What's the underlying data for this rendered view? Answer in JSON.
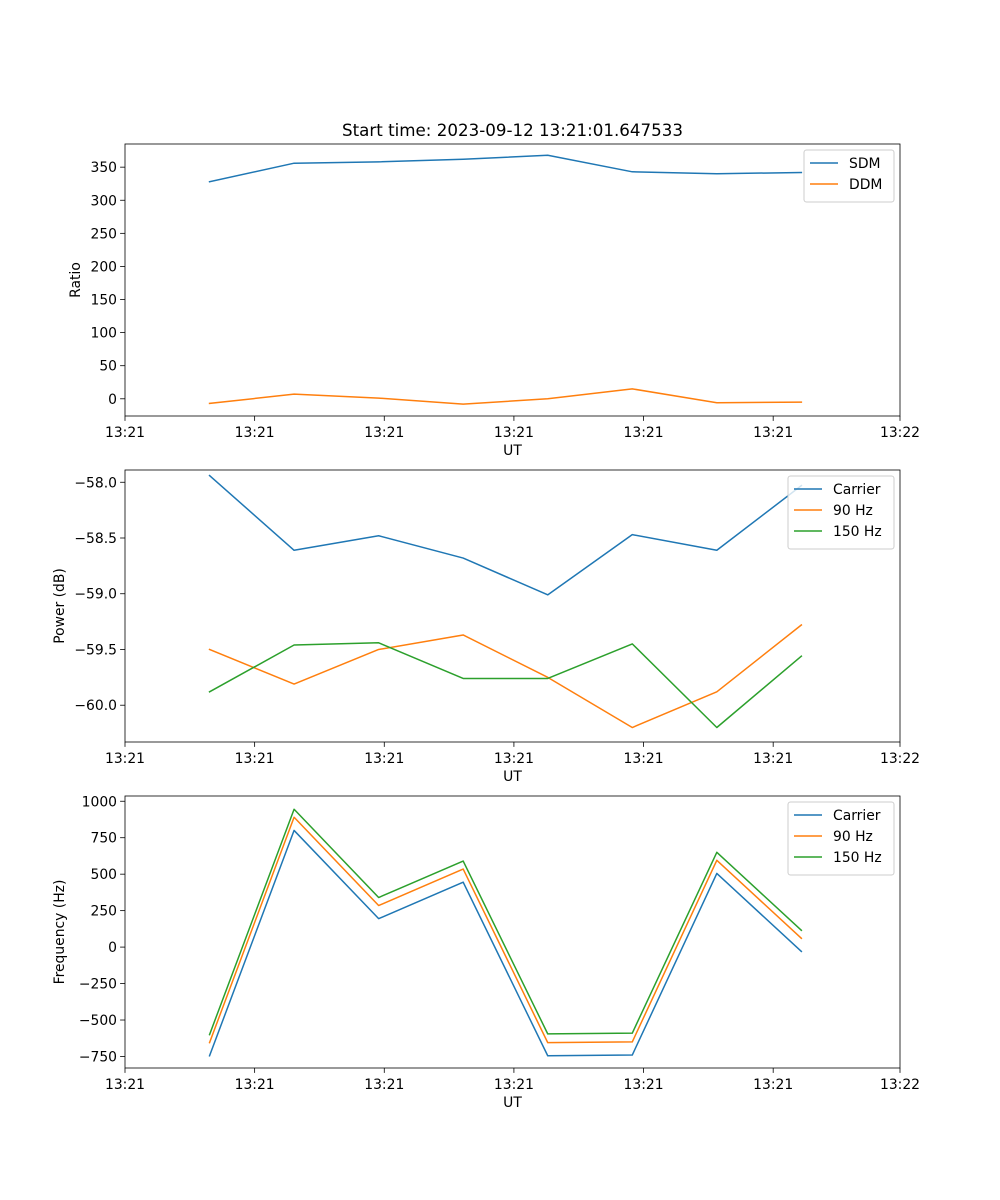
{
  "figure_title": "Start time: 2023-09-12 13:21:01.647533",
  "colors": {
    "c0": "#1f77b4",
    "c1": "#ff7f0e",
    "c2": "#2ca02c"
  },
  "chart_data": [
    {
      "type": "line",
      "title": "Start time: 2023-09-12 13:21:01.647533",
      "xlabel": "UT",
      "ylabel": "Ratio",
      "x": [
        0.6,
        1.2,
        1.8,
        2.4,
        3.0,
        3.6,
        4.2,
        4.8
      ],
      "xlim": [
        0.0,
        5.5
      ],
      "xticks": [
        0.0,
        0.92,
        1.84,
        2.76,
        3.68,
        4.6,
        5.5
      ],
      "xtick_labels": [
        "13:21",
        "13:21",
        "13:21",
        "13:21",
        "13:21",
        "13:21",
        "13:22"
      ],
      "ylim": [
        -26,
        385
      ],
      "yticks": [
        0,
        50,
        100,
        150,
        200,
        250,
        300,
        350
      ],
      "series": [
        {
          "name": "SDM",
          "color": "#1f77b4",
          "values": [
            328,
            356,
            358,
            362,
            368,
            343,
            340,
            342
          ]
        },
        {
          "name": "DDM",
          "color": "#ff7f0e",
          "values": [
            -7,
            7,
            1,
            -8,
            0,
            15,
            -6,
            -5
          ]
        }
      ],
      "legend": "upper right"
    },
    {
      "type": "line",
      "title": "",
      "xlabel": "UT",
      "ylabel": "Power (dB)",
      "x": [
        0.6,
        1.2,
        1.8,
        2.4,
        3.0,
        3.6,
        4.2,
        4.8
      ],
      "xlim": [
        0.0,
        5.5
      ],
      "xticks": [
        0.0,
        0.92,
        1.84,
        2.76,
        3.68,
        4.6,
        5.5
      ],
      "xtick_labels": [
        "13:21",
        "13:21",
        "13:21",
        "13:21",
        "13:21",
        "13:21",
        "13:22"
      ],
      "ylim": [
        -60.33,
        -57.89
      ],
      "yticks": [
        -60.0,
        -59.5,
        -59.0,
        -58.5,
        -58.0
      ],
      "ytick_labels": [
        "−60.0",
        "−59.5",
        "−59.0",
        "−58.5",
        "−58.0"
      ],
      "series": [
        {
          "name": "Carrier",
          "color": "#1f77b4",
          "values": [
            -57.94,
            -58.61,
            -58.48,
            -58.68,
            -59.01,
            -58.47,
            -58.61,
            -58.03
          ]
        },
        {
          "name": "90 Hz",
          "color": "#ff7f0e",
          "values": [
            -59.5,
            -59.81,
            -59.5,
            -59.37,
            -59.75,
            -60.2,
            -59.88,
            -59.28
          ]
        },
        {
          "name": "150 Hz",
          "color": "#2ca02c",
          "values": [
            -59.88,
            -59.46,
            -59.44,
            -59.76,
            -59.76,
            -59.45,
            -60.2,
            -59.56
          ]
        }
      ],
      "legend": "upper right"
    },
    {
      "type": "line",
      "title": "",
      "xlabel": "UT",
      "ylabel": "Frequency (Hz)",
      "x": [
        0.6,
        1.2,
        1.8,
        2.4,
        3.0,
        3.6,
        4.2,
        4.8
      ],
      "xlim": [
        0.0,
        5.5
      ],
      "xticks": [
        0.0,
        0.92,
        1.84,
        2.76,
        3.68,
        4.6,
        5.5
      ],
      "xtick_labels": [
        "13:21",
        "13:21",
        "13:21",
        "13:21",
        "13:21",
        "13:21",
        "13:22"
      ],
      "ylim": [
        -829,
        1036
      ],
      "yticks": [
        -750,
        -500,
        -250,
        0,
        250,
        500,
        750,
        1000
      ],
      "ytick_labels": [
        "−750",
        "−500",
        "−250",
        "0",
        "250",
        "500",
        "750",
        "1000"
      ],
      "series": [
        {
          "name": "Carrier",
          "color": "#1f77b4",
          "values": [
            -745,
            800,
            195,
            445,
            -745,
            -740,
            505,
            -30
          ]
        },
        {
          "name": "90 Hz",
          "color": "#ff7f0e",
          "values": [
            -655,
            890,
            285,
            535,
            -655,
            -650,
            595,
            60
          ]
        },
        {
          "name": "150 Hz",
          "color": "#2ca02c",
          "values": [
            -600,
            945,
            340,
            590,
            -595,
            -590,
            650,
            115
          ]
        }
      ],
      "legend": "upper right"
    }
  ]
}
